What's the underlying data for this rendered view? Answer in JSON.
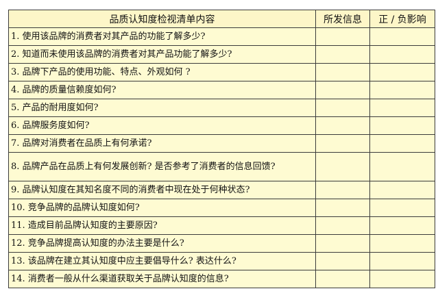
{
  "table": {
    "headers": [
      "品质认知度检视清单内容",
      "所发信息",
      "正 / 负影响"
    ],
    "rows": [
      "1. 使用该品牌的消费者对其产品的功能了解多少?",
      "2. 知道而未使用该品牌的消费者对其产品功能了解多少?",
      "3. 品牌下产品的使用功能、特点、外观如何 ?",
      "4. 品牌的质量信赖度如何?",
      "5. 产品的耐用度如何?",
      "6. 品牌服务度如何?",
      "7. 品牌对消费者在品质上有何承诺?",
      "8. 品牌产品在品质上有何发展创新? 是否参考了消费者的信息回馈?",
      "9. 品牌认知度在其知名度不同的消费者中现在处于何种状态?",
      "10. 竞争品牌的品牌认知度如何?",
      "11. 造成目前品牌认知度的主要原因?",
      "12. 竞争品牌提高认知度的办法主要是什么?",
      "13. 该品牌在建立其认知度中应主要倡导什么? 表达什么?",
      "14. 消费者一般从什么渠道获取关于品牌认知度的信息?"
    ]
  }
}
